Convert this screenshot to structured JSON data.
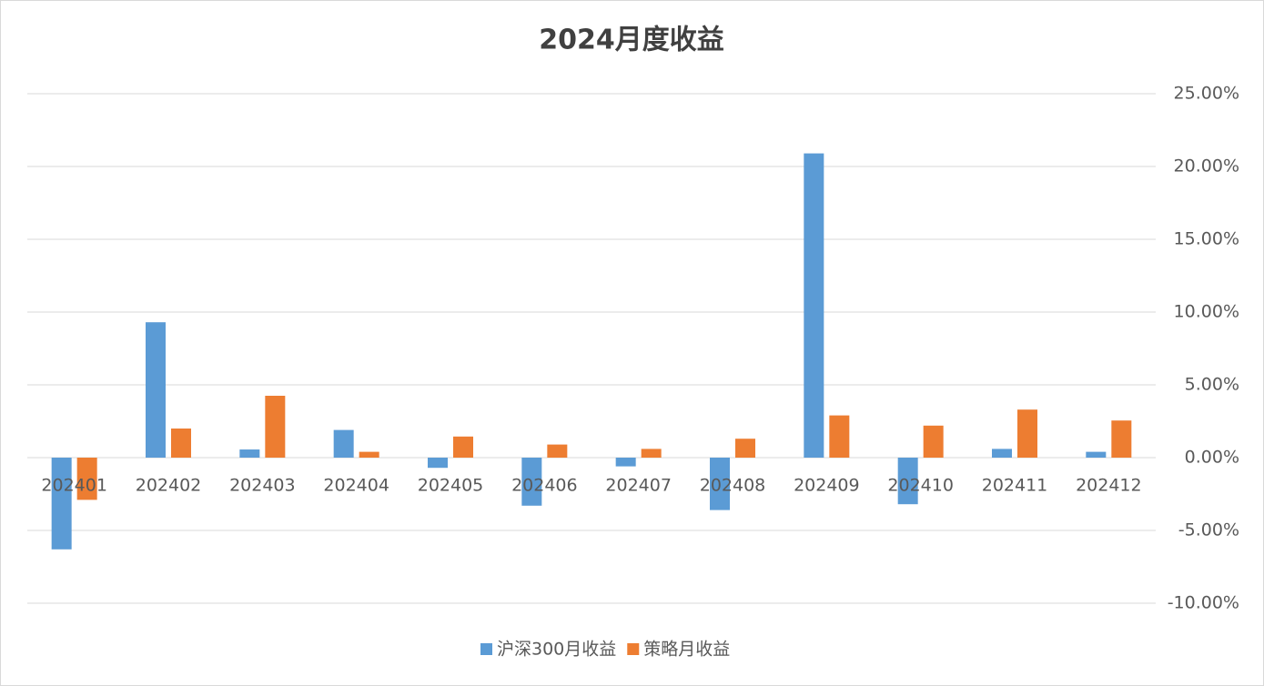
{
  "chart_data": {
    "type": "bar",
    "title": "2024月度收益",
    "categories": [
      "202401",
      "202402",
      "202403",
      "202404",
      "202405",
      "202406",
      "202407",
      "202408",
      "202409",
      "202410",
      "202411",
      "202412"
    ],
    "series": [
      {
        "name": "沪深300月收益",
        "color": "#5b9bd5",
        "values": [
          -6.3,
          9.3,
          0.56,
          1.9,
          -0.7,
          -3.3,
          -0.6,
          -3.6,
          20.9,
          -3.2,
          0.6,
          0.4
        ]
      },
      {
        "name": "策略月收益",
        "color": "#ed7d31",
        "values": [
          -2.9,
          2.0,
          4.25,
          0.4,
          1.45,
          0.9,
          0.6,
          1.3,
          2.9,
          2.2,
          3.3,
          2.55
        ]
      }
    ],
    "ylim": [
      -10,
      25
    ],
    "yticks": [
      {
        "value": -10,
        "label": "-10.00%"
      },
      {
        "value": -5,
        "label": "-5.00%"
      },
      {
        "value": 0,
        "label": "0.00%"
      },
      {
        "value": 5,
        "label": "5.00%"
      },
      {
        "value": 10,
        "label": "10.00%"
      },
      {
        "value": 15,
        "label": "15.00%"
      },
      {
        "value": 20,
        "label": "20.00%"
      },
      {
        "value": 25,
        "label": "25.00%"
      }
    ],
    "grid": true,
    "legend": "bottom"
  }
}
